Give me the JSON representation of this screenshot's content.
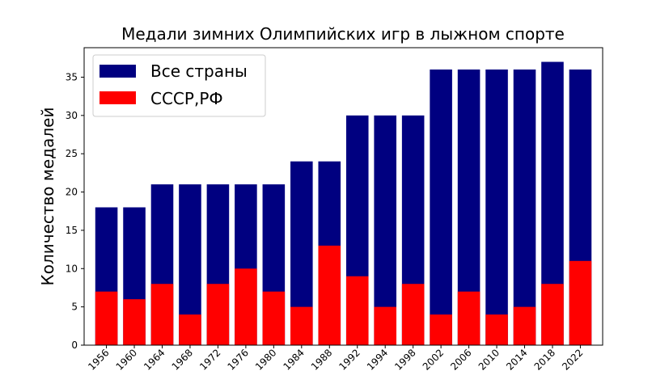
{
  "chart_data": {
    "type": "bar",
    "title": "Медали зимних Олимпийских игр в лыжном спорте",
    "xlabel": "",
    "ylabel": "Количество медалей",
    "ylim": [
      0,
      38.85
    ],
    "yticks": [
      0,
      5,
      10,
      15,
      20,
      25,
      30,
      35
    ],
    "grid": false,
    "legend_placement": "upper-left",
    "categories": [
      "1956",
      "1960",
      "1964",
      "1968",
      "1972",
      "1976",
      "1980",
      "1984",
      "1988",
      "1992",
      "1994",
      "1998",
      "2002",
      "2006",
      "2010",
      "2014",
      "2018",
      "2022"
    ],
    "series": [
      {
        "name": "Все страны",
        "color": "#000080",
        "values": [
          18,
          18,
          21,
          21,
          21,
          21,
          21,
          24,
          24,
          30,
          30,
          30,
          36,
          36,
          36,
          36,
          37,
          36
        ]
      },
      {
        "name": "СССР,РФ",
        "color": "#ff0000",
        "values": [
          7,
          6,
          8,
          4,
          8,
          10,
          7,
          5,
          13,
          9,
          5,
          8,
          4,
          7,
          4,
          5,
          8,
          11
        ]
      }
    ]
  }
}
